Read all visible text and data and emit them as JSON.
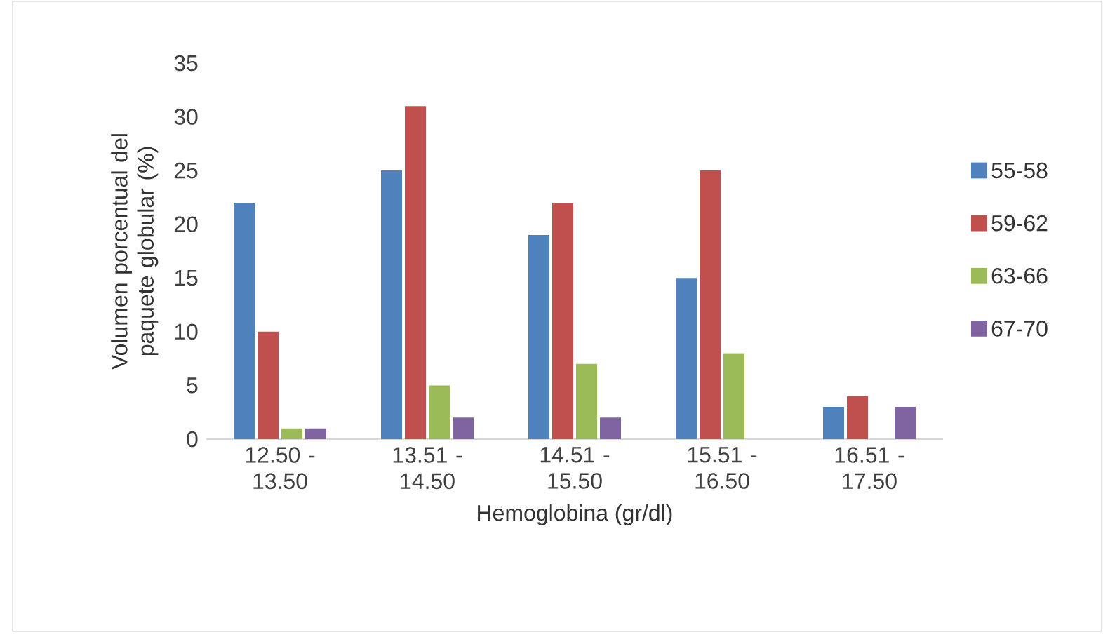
{
  "chart_data": {
    "type": "bar",
    "xlabel": "Hemoglobina (gr/dl)",
    "ylabel": "Volumen porcentual del paquete globular (%)",
    "categories": [
      "12.50 - 13.50",
      "13.51 - 14.50",
      "14.51 - 15.50",
      "15.51 - 16.50",
      "16.51 - 17.50"
    ],
    "series": [
      {
        "name": "55-58",
        "color": "#4f81bd",
        "values": [
          22,
          25,
          19,
          15,
          3
        ]
      },
      {
        "name": "59-62",
        "color": "#c0504d",
        "values": [
          10,
          31,
          22,
          25,
          4
        ]
      },
      {
        "name": "63-66",
        "color": "#9bbb59",
        "values": [
          1,
          5,
          7,
          8,
          null
        ]
      },
      {
        "name": "67-70",
        "color": "#8064a2",
        "values": [
          1,
          2,
          2,
          null,
          3
        ]
      }
    ],
    "ylim": [
      0,
      35
    ],
    "yticks": [
      0,
      5,
      10,
      15,
      20,
      25,
      30,
      35
    ],
    "legend": "right"
  }
}
